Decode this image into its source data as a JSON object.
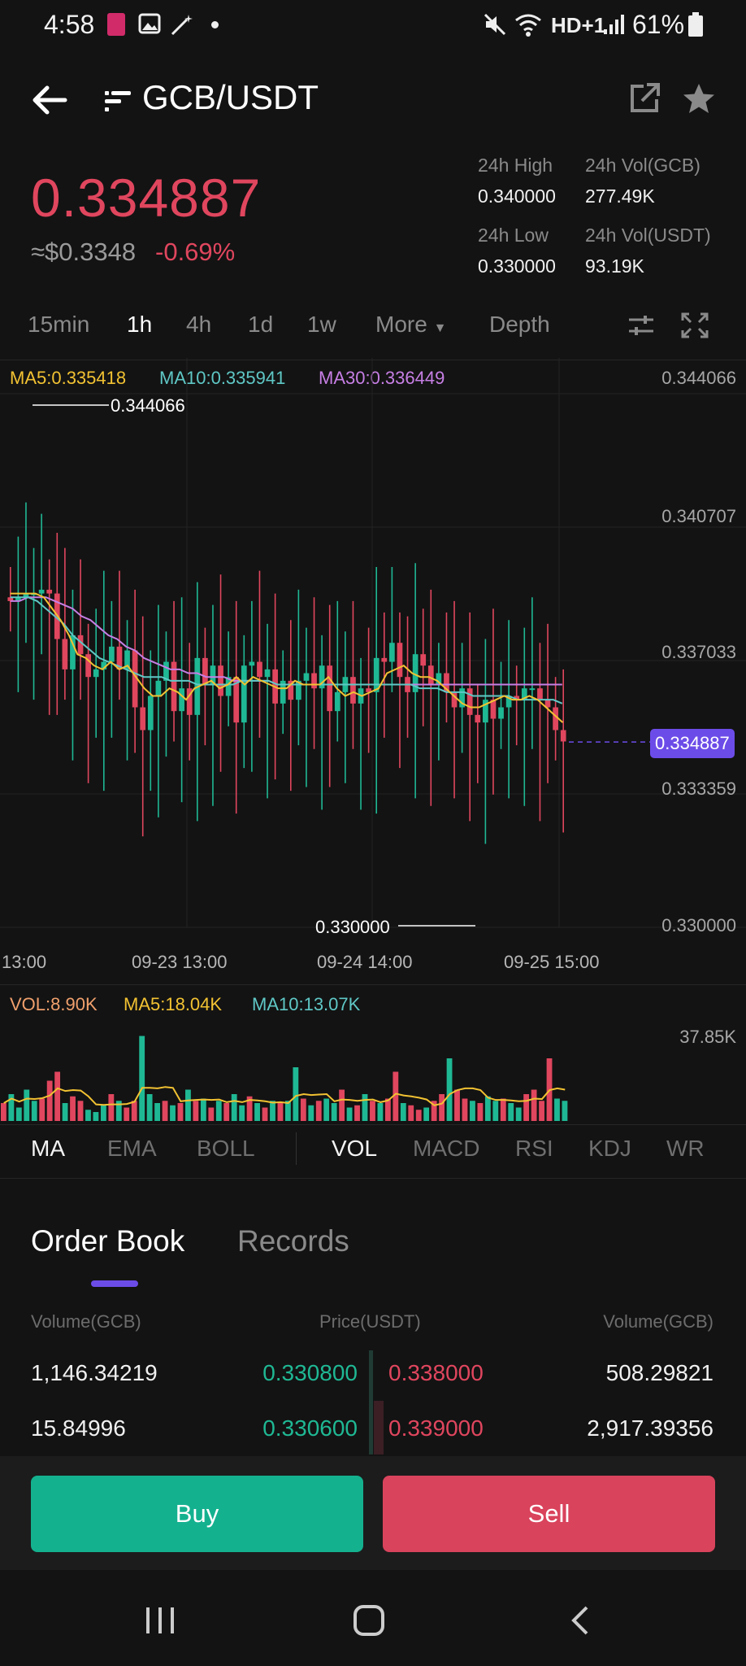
{
  "status_bar": {
    "time": "4:58",
    "battery": "61%",
    "network": "HD+1"
  },
  "header": {
    "pair": "GCB/USDT"
  },
  "ticker": {
    "last_price": "0.334887",
    "usd_price": "≈$0.3348",
    "change": "-0.69%",
    "high_label": "24h High",
    "high_value": "0.340000",
    "vol_base_label": "24h Vol(GCB)",
    "vol_base_value": "277.49K",
    "low_label": "24h Low",
    "low_value": "0.330000",
    "vol_quote_label": "24h Vol(USDT)",
    "vol_quote_value": "93.19K"
  },
  "timeframes": {
    "t1": "15min",
    "t2": "1h",
    "t3": "4h",
    "t4": "1d",
    "t5": "1w",
    "more": "More",
    "depth": "Depth",
    "active": "1h"
  },
  "ma_legend": {
    "ma5": "MA5:0.335418",
    "ma10": "MA10:0.335941",
    "ma30": "MA30:0.336449"
  },
  "chart_data": {
    "type": "candlestick",
    "interval": "1h",
    "y_ticks": [
      "0.344066",
      "0.340707",
      "0.337033",
      "0.333359",
      "0.330000"
    ],
    "x_ticks": [
      "13:00",
      "09-23 13:00",
      "09-24 14:00",
      "09-25 15:00"
    ],
    "ylim": [
      0.33,
      0.344066
    ],
    "current_price": "0.334887",
    "max_label": "0.344066",
    "min_label": "0.330000",
    "closes": [
      0.3386,
      0.3387,
      0.3388,
      0.3388,
      0.3389,
      0.3388,
      0.3376,
      0.3368,
      0.3377,
      0.3372,
      0.3366,
      0.3368,
      0.337,
      0.3374,
      0.3368,
      0.3373,
      0.3358,
      0.3352,
      0.3361,
      0.3365,
      0.337,
      0.3357,
      0.3363,
      0.3356,
      0.3371,
      0.3364,
      0.3369,
      0.3361,
      0.3366,
      0.3354,
      0.3369,
      0.337,
      0.3366,
      0.3368,
      0.3359,
      0.3365,
      0.336,
      0.3365,
      0.3367,
      0.3363,
      0.3369,
      0.3357,
      0.3362,
      0.3366,
      0.3359,
      0.3363,
      0.3362,
      0.3371,
      0.337,
      0.3375,
      0.3366,
      0.3362,
      0.3372,
      0.3369,
      0.3364,
      0.3367,
      0.3362,
      0.3358,
      0.3363,
      0.3356,
      0.3354,
      0.336,
      0.3355,
      0.3358,
      0.3361,
      0.336,
      0.3363,
      0.3363,
      0.336,
      0.3358,
      0.3352,
      0.3349
    ],
    "opens": [
      0.3387,
      0.3386,
      0.3387,
      0.3388,
      0.3388,
      0.3389,
      0.3388,
      0.3376,
      0.3368,
      0.3377,
      0.3372,
      0.3366,
      0.3368,
      0.337,
      0.3374,
      0.3368,
      0.3373,
      0.3358,
      0.3352,
      0.3361,
      0.3365,
      0.337,
      0.3357,
      0.3363,
      0.3356,
      0.3371,
      0.3364,
      0.3369,
      0.3361,
      0.3366,
      0.3354,
      0.3369,
      0.337,
      0.3366,
      0.3368,
      0.3359,
      0.3365,
      0.336,
      0.3365,
      0.3367,
      0.3363,
      0.3369,
      0.3357,
      0.3362,
      0.3366,
      0.3359,
      0.3363,
      0.3362,
      0.3371,
      0.337,
      0.3375,
      0.3366,
      0.3362,
      0.3372,
      0.3369,
      0.3364,
      0.3367,
      0.3362,
      0.3358,
      0.3363,
      0.3356,
      0.3354,
      0.336,
      0.3355,
      0.3358,
      0.3361,
      0.336,
      0.3363,
      0.3363,
      0.336,
      0.3358,
      0.3352
    ],
    "ma5": [
      0.3388,
      0.3388,
      0.3388,
      0.3388,
      0.3387,
      0.3384,
      0.3381,
      0.3377,
      0.3372,
      0.3371,
      0.3369,
      0.3368,
      0.337,
      0.3368,
      0.3369,
      0.3366,
      0.3363,
      0.3361,
      0.3361,
      0.3363,
      0.3362,
      0.336,
      0.3363,
      0.3364,
      0.3365,
      0.3363,
      0.3364,
      0.3366,
      0.3364,
      0.3366,
      0.3365,
      0.3364,
      0.3363,
      0.3363,
      0.3365,
      0.3364,
      0.3364,
      0.3364,
      0.3366,
      0.3363,
      0.3361,
      0.3362,
      0.3361,
      0.3362,
      0.3363,
      0.3367,
      0.3368,
      0.3369,
      0.3367,
      0.3366,
      0.3366,
      0.3365,
      0.3363,
      0.3361,
      0.3359,
      0.3358,
      0.3358,
      0.3359,
      0.336,
      0.3361,
      0.336,
      0.336,
      0.3361,
      0.336,
      0.3358,
      0.3356,
      0.3354
    ],
    "ma10": [
      0.3387,
      0.3387,
      0.3387,
      0.3386,
      0.3384,
      0.3382,
      0.338,
      0.3377,
      0.3375,
      0.3373,
      0.3371,
      0.337,
      0.3369,
      0.3368,
      0.3367,
      0.3366,
      0.3366,
      0.3366,
      0.3365,
      0.3365,
      0.3365,
      0.3364,
      0.3364,
      0.3364,
      0.3364,
      0.3364,
      0.3365,
      0.3365,
      0.3365,
      0.3365,
      0.3364,
      0.3364,
      0.3364,
      0.3364,
      0.3364,
      0.3364,
      0.3364,
      0.3364,
      0.3364,
      0.3364,
      0.3364,
      0.3364,
      0.3364,
      0.3364,
      0.3364,
      0.3364,
      0.3363,
      0.3363,
      0.3363,
      0.3362,
      0.3362,
      0.3362,
      0.3361,
      0.3361,
      0.3361,
      0.3361,
      0.3361,
      0.336,
      0.336,
      0.336,
      0.336,
      0.336,
      0.3359
    ],
    "ma30": [
      0.3386,
      0.3386,
      0.3387,
      0.3387,
      0.3387,
      0.3386,
      0.3385,
      0.3384,
      0.3382,
      0.3381,
      0.3379,
      0.3377,
      0.3376,
      0.3374,
      0.3373,
      0.3371,
      0.337,
      0.3369,
      0.3368,
      0.3368,
      0.3367,
      0.3367,
      0.3366,
      0.3366,
      0.3366,
      0.3365,
      0.3365,
      0.3365,
      0.3365,
      0.3365,
      0.3364,
      0.3364,
      0.3364,
      0.3364,
      0.3364,
      0.3364,
      0.3364,
      0.3364,
      0.3364,
      0.3364,
      0.3364,
      0.3364,
      0.3364,
      0.3364,
      0.3364,
      0.3364,
      0.3364,
      0.3364,
      0.3364,
      0.3364,
      0.3364,
      0.3364,
      0.3364,
      0.3364,
      0.3364,
      0.3364,
      0.3364,
      0.3364,
      0.3364,
      0.3364,
      0.3364,
      0.3364,
      0.3364
    ],
    "colors": {
      "up": "#1fb894",
      "down": "#e0465e",
      "ma5": "#f2c232",
      "ma10": "#5fc8c6",
      "ma30": "#c77fe5",
      "current": "#6c4ce8"
    }
  },
  "vol_legend": {
    "vol": "VOL:8.90K",
    "ma5": "MA5:18.04K",
    "ma10": "MA10:13.07K",
    "max": "37.85K"
  },
  "vol_data": [
    8,
    12,
    6,
    14,
    9,
    10,
    18,
    22,
    8,
    11,
    9,
    5,
    4,
    7,
    12,
    9,
    6,
    9,
    38,
    12,
    8,
    9,
    7,
    8,
    14,
    9,
    10,
    6,
    9,
    8,
    12,
    7,
    11,
    8,
    6,
    9,
    8,
    9,
    24,
    10,
    7,
    9,
    10,
    8,
    14,
    6,
    7,
    12,
    9,
    8,
    10,
    22,
    8,
    7,
    5,
    6,
    9,
    12,
    28,
    14,
    10,
    9,
    8,
    11,
    9,
    10,
    8,
    6,
    12,
    14,
    9,
    28,
    10,
    9
  ],
  "indicators": {
    "ma": "MA",
    "ema": "EMA",
    "boll": "BOLL",
    "vol": "VOL",
    "macd": "MACD",
    "rsi": "RSI",
    "kdj": "KDJ",
    "wr": "WR"
  },
  "order_book": {
    "tab_book": "Order Book",
    "tab_records": "Records",
    "col_vol_left": "Volume(GCB)",
    "col_price": "Price(USDT)",
    "col_vol_right": "Volume(GCB)",
    "rows": [
      {
        "bid_vol": "1,146.34219",
        "bid_price": "0.330800",
        "ask_price": "0.338000",
        "ask_vol": "508.29821"
      },
      {
        "bid_vol": "15.84996",
        "bid_price": "0.330600",
        "ask_price": "0.339000",
        "ask_vol": "2,917.39356"
      }
    ]
  },
  "actions": {
    "buy": "Buy",
    "sell": "Sell"
  }
}
